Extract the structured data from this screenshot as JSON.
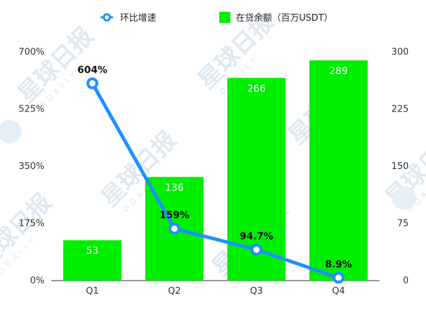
{
  "legend": {
    "line_label": "环比增速",
    "bar_label": "在贷余额（百万USDT）"
  },
  "watermark": {
    "text": "星球日报",
    "sub": "ODAILY"
  },
  "colors": {
    "bar": "#00ee00",
    "line": "#1e90ff",
    "point_fill": "#ffffff"
  },
  "chart_data": {
    "type": "bar",
    "categories": [
      "Q1",
      "Q2",
      "Q3",
      "Q4"
    ],
    "series": [
      {
        "name": "在贷余额（百万USDT）",
        "type": "bar",
        "axis": "right",
        "values": [
          53,
          136,
          266,
          289
        ]
      },
      {
        "name": "环比增速",
        "type": "line",
        "axis": "left",
        "values": [
          604,
          159,
          94.7,
          8.9
        ],
        "labels": [
          "604%",
          "159%",
          "94.7%",
          "8.9%"
        ]
      }
    ],
    "left_axis": {
      "ylim": [
        0,
        700
      ],
      "ticks": [
        "0%",
        "175%",
        "350%",
        "525%",
        "700%"
      ]
    },
    "right_axis": {
      "ylim": [
        0,
        300
      ],
      "ticks": [
        "0",
        "75",
        "150",
        "225",
        "300"
      ]
    },
    "grid": false,
    "legend_position": "top"
  }
}
